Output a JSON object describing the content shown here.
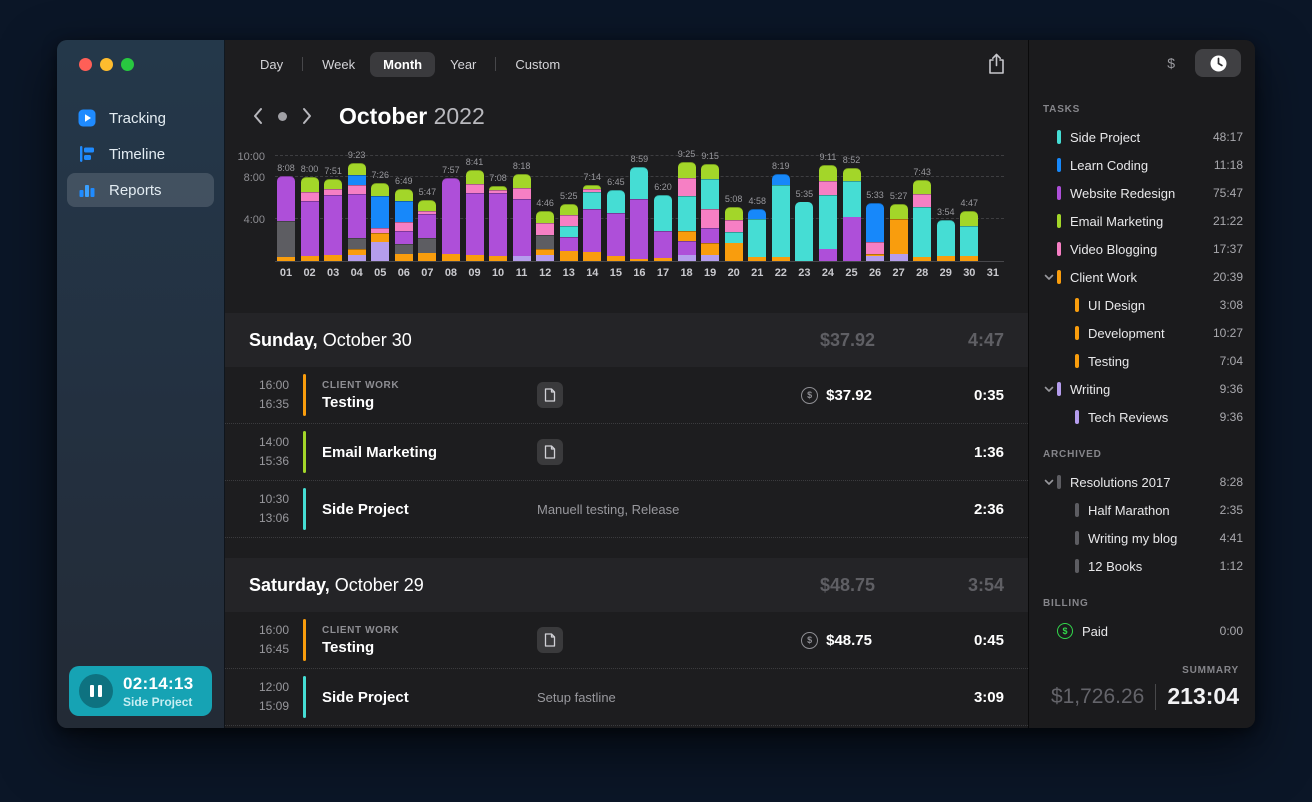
{
  "colors": {
    "accent_blue": "#1f8bff",
    "timer_bg": "#16a3b4",
    "palette": {
      "orange": "#f99d0d",
      "purple": "#ae4fd9",
      "gray": "#5d5d62",
      "pink": "#f67fc4",
      "green": "#a3d629",
      "blue": "#1788fa",
      "cyan": "#45ddd4",
      "lavender": "#b59ded",
      "billing_green": "#32d74b"
    }
  },
  "sidebar": {
    "items": [
      {
        "label": "Tracking",
        "icon": "tracking-icon",
        "active": false
      },
      {
        "label": "Timeline",
        "icon": "timeline-icon",
        "active": false
      },
      {
        "label": "Reports",
        "icon": "reports-icon",
        "active": true
      }
    ],
    "timer": {
      "time": "02:14:13",
      "task": "Side Project"
    }
  },
  "main": {
    "tabs": [
      {
        "label": "Day",
        "active": false
      },
      {
        "label": "Week",
        "active": false
      },
      {
        "label": "Month",
        "active": true
      },
      {
        "label": "Year",
        "active": false
      },
      {
        "label": "Custom",
        "active": false
      }
    ],
    "period": {
      "month": "October",
      "year": "2022"
    },
    "days": [
      {
        "title_bold": "Sunday,",
        "title_rest": " October 30",
        "amount": "$37.92",
        "duration": "4:47",
        "entries": [
          {
            "start": "16:00",
            "end": "16:35",
            "color": "orange",
            "category": "CLIENT WORK",
            "title": "Testing",
            "note": "",
            "has_doc": true,
            "amount": "$37.92",
            "duration": "0:35"
          },
          {
            "start": "14:00",
            "end": "15:36",
            "color": "green",
            "category": "",
            "title": "Email Marketing",
            "note": "",
            "has_doc": true,
            "amount": "",
            "duration": "1:36"
          },
          {
            "start": "10:30",
            "end": "13:06",
            "color": "cyan",
            "category": "",
            "title": "Side Project",
            "note": "Manuell testing, Release",
            "has_doc": false,
            "amount": "",
            "duration": "2:36"
          }
        ]
      },
      {
        "title_bold": "Saturday,",
        "title_rest": " October 29",
        "amount": "$48.75",
        "duration": "3:54",
        "entries": [
          {
            "start": "16:00",
            "end": "16:45",
            "color": "orange",
            "category": "CLIENT WORK",
            "title": "Testing",
            "note": "",
            "has_doc": true,
            "amount": "$48.75",
            "duration": "0:45"
          },
          {
            "start": "12:00",
            "end": "15:09",
            "color": "cyan",
            "category": "",
            "title": "Side Project",
            "note": "Setup fastline",
            "has_doc": false,
            "amount": "",
            "duration": "3:09"
          }
        ]
      }
    ]
  },
  "chart_data": {
    "type": "stacked-bar",
    "title": "Daily tracked time — October 2022",
    "unit": "hours",
    "grid": "dashed",
    "ylim_hours": [
      0,
      10.6
    ],
    "y_ticks": [
      {
        "label": "10:00",
        "hours": 10
      },
      {
        "label": "8:00",
        "hours": 8
      },
      {
        "label": "4:00",
        "hours": 4
      }
    ],
    "x_labels": [
      "01",
      "02",
      "03",
      "04",
      "05",
      "06",
      "07",
      "08",
      "09",
      "10",
      "11",
      "12",
      "13",
      "14",
      "15",
      "16",
      "17",
      "18",
      "19",
      "20",
      "21",
      "22",
      "23",
      "24",
      "25",
      "26",
      "27",
      "28",
      "29",
      "30",
      "31"
    ],
    "totals": [
      "8:08",
      "8:00",
      "7:51",
      "9:23",
      "7:26",
      "6:49",
      "5:47",
      "7:57",
      "8:41",
      "7:08",
      "8:18",
      "4:46",
      "5:25",
      "7:14",
      "6:45",
      "8:59",
      "6:20",
      "9:25",
      "9:15",
      "5:08",
      "4:58",
      "8:19",
      "5:35",
      "9:11",
      "8:52",
      "5:33",
      "5:27",
      "7:43",
      "3:54",
      "4:47",
      ""
    ],
    "bars": [
      [
        [
          "orange",
          0.4
        ],
        [
          "gray",
          3.45
        ],
        [
          "purple",
          4.28
        ]
      ],
      [
        [
          "orange",
          0.5
        ],
        [
          "purple",
          5.25
        ],
        [
          "pink",
          0.85
        ],
        [
          "green",
          1.4
        ]
      ],
      [
        [
          "orange",
          0.6
        ],
        [
          "purple",
          5.65
        ],
        [
          "pink",
          0.6
        ],
        [
          "green",
          1.0
        ]
      ],
      [
        [
          "lavender",
          0.55
        ],
        [
          "orange",
          0.6
        ],
        [
          "gray",
          1.05
        ],
        [
          "purple",
          4.2
        ],
        [
          "pink",
          0.8
        ],
        [
          "blue",
          1.0
        ],
        [
          "green",
          1.18
        ]
      ],
      [
        [
          "lavender",
          1.85
        ],
        [
          "orange",
          0.8
        ],
        [
          "pink",
          0.45
        ],
        [
          "blue",
          3.1
        ],
        [
          "green",
          1.23
        ]
      ],
      [
        [
          "orange",
          0.7
        ],
        [
          "gray",
          0.9
        ],
        [
          "purple",
          1.25
        ],
        [
          "pink",
          0.85
        ],
        [
          "blue",
          2.0
        ],
        [
          "green",
          1.12
        ]
      ],
      [
        [
          "orange",
          0.8
        ],
        [
          "gray",
          1.35
        ],
        [
          "purple",
          2.35
        ],
        [
          "pink",
          0.28
        ],
        [
          "green",
          1.0
        ]
      ],
      [
        [
          "orange",
          0.7
        ],
        [
          "purple",
          7.25
        ]
      ],
      [
        [
          "orange",
          0.55
        ],
        [
          "purple",
          5.9
        ],
        [
          "pink",
          0.9
        ],
        [
          "green",
          1.33
        ]
      ],
      [
        [
          "orange",
          0.45
        ],
        [
          "purple",
          6.05
        ],
        [
          "pink",
          0.25
        ],
        [
          "green",
          0.38
        ]
      ],
      [
        [
          "lavender",
          0.5
        ],
        [
          "purple",
          5.45
        ],
        [
          "pink",
          1.05
        ],
        [
          "green",
          1.3
        ]
      ],
      [
        [
          "lavender",
          0.55
        ],
        [
          "orange",
          0.6
        ],
        [
          "gray",
          1.3
        ],
        [
          "pink",
          1.2
        ],
        [
          "green",
          1.12
        ]
      ],
      [
        [
          "orange",
          1.0
        ],
        [
          "purple",
          1.3
        ],
        [
          "cyan",
          1.0
        ],
        [
          "pink",
          1.1
        ],
        [
          "green",
          1.02
        ]
      ],
      [
        [
          "orange",
          0.9
        ],
        [
          "purple",
          4.05
        ],
        [
          "cyan",
          1.65
        ],
        [
          "pink",
          0.3
        ],
        [
          "green",
          0.33
        ]
      ],
      [
        [
          "orange",
          0.5
        ],
        [
          "purple",
          4.1
        ],
        [
          "cyan",
          2.15
        ]
      ],
      [
        [
          "orange",
          0.2
        ],
        [
          "purple",
          5.7
        ],
        [
          "cyan",
          3.08
        ]
      ],
      [
        [
          "orange",
          0.25
        ],
        [
          "purple",
          2.6
        ],
        [
          "cyan",
          3.48
        ]
      ],
      [
        [
          "lavender",
          0.6
        ],
        [
          "purple",
          1.3
        ],
        [
          "orange",
          1.0
        ],
        [
          "cyan",
          3.3
        ],
        [
          "pink",
          1.7
        ],
        [
          "green",
          1.52
        ]
      ],
      [
        [
          "lavender",
          0.6
        ],
        [
          "orange",
          1.1
        ],
        [
          "purple",
          1.4
        ],
        [
          "pink",
          1.9
        ],
        [
          "cyan",
          2.8
        ],
        [
          "green",
          1.45
        ]
      ],
      [
        [
          "orange",
          1.7
        ],
        [
          "cyan",
          1.1
        ],
        [
          "pink",
          1.1
        ],
        [
          "green",
          1.23
        ]
      ],
      [
        [
          "orange",
          0.4
        ],
        [
          "cyan",
          3.6
        ],
        [
          "blue",
          0.97
        ]
      ],
      [
        [
          "orange",
          0.35
        ],
        [
          "cyan",
          6.9
        ],
        [
          "blue",
          1.07
        ]
      ],
      [
        [
          "cyan",
          5.58
        ]
      ],
      [
        [
          "purple",
          1.1
        ],
        [
          "cyan",
          5.2
        ],
        [
          "pink",
          1.3
        ],
        [
          "green",
          1.58
        ]
      ],
      [
        [
          "purple",
          4.2
        ],
        [
          "cyan",
          3.4
        ],
        [
          "green",
          1.27
        ]
      ],
      [
        [
          "lavender",
          0.45
        ],
        [
          "orange",
          0.25
        ],
        [
          "pink",
          1.1
        ],
        [
          "blue",
          3.75
        ]
      ],
      [
        [
          "lavender",
          0.7
        ],
        [
          "orange",
          3.3
        ],
        [
          "green",
          1.45
        ]
      ],
      [
        [
          "orange",
          0.4
        ],
        [
          "cyan",
          4.7
        ],
        [
          "pink",
          1.3
        ],
        [
          "green",
          1.32
        ]
      ],
      [
        [
          "orange",
          0.5
        ],
        [
          "cyan",
          3.4
        ]
      ],
      [
        [
          "orange",
          0.5
        ],
        [
          "cyan",
          2.85
        ],
        [
          "green",
          1.43
        ]
      ],
      []
    ]
  },
  "tasks_panel": {
    "dollar_symbol": "$",
    "tasks_label": "TASKS",
    "archived_label": "ARCHIVED",
    "billing_label": "BILLING",
    "tasks": [
      {
        "label": "Side Project",
        "time": "48:17",
        "color": "cyan",
        "indent": 0,
        "chevron": false
      },
      {
        "label": "Learn Coding",
        "time": "11:18",
        "color": "blue",
        "indent": 0,
        "chevron": false
      },
      {
        "label": "Website Redesign",
        "time": "75:47",
        "color": "purple",
        "indent": 0,
        "chevron": false
      },
      {
        "label": "Email Marketing",
        "time": "21:22",
        "color": "green",
        "indent": 0,
        "chevron": false
      },
      {
        "label": "Video Blogging",
        "time": "17:37",
        "color": "pink",
        "indent": 0,
        "chevron": false
      },
      {
        "label": "Client Work",
        "time": "20:39",
        "color": "orange",
        "indent": 0,
        "chevron": true
      },
      {
        "label": "UI Design",
        "time": "3:08",
        "color": "orange",
        "indent": 1,
        "chevron": false
      },
      {
        "label": "Development",
        "time": "10:27",
        "color": "orange",
        "indent": 1,
        "chevron": false
      },
      {
        "label": "Testing",
        "time": "7:04",
        "color": "orange",
        "indent": 1,
        "chevron": false
      },
      {
        "label": "Writing",
        "time": "9:36",
        "color": "lavender",
        "indent": 0,
        "chevron": true
      },
      {
        "label": "Tech Reviews",
        "time": "9:36",
        "color": "lavender",
        "indent": 1,
        "chevron": false
      }
    ],
    "archived": [
      {
        "label": "Resolutions 2017",
        "time": "8:28",
        "color": "gray",
        "indent": 0,
        "chevron": true
      },
      {
        "label": "Half Marathon",
        "time": "2:35",
        "color": "gray",
        "indent": 1,
        "chevron": false
      },
      {
        "label": "Writing my blog",
        "time": "4:41",
        "color": "gray",
        "indent": 1,
        "chevron": false
      },
      {
        "label": "12 Books",
        "time": "1:12",
        "color": "gray",
        "indent": 1,
        "chevron": false
      }
    ],
    "billing": [
      {
        "label": "Paid",
        "time": "0:00",
        "icon": "dollar-circle-icon"
      }
    ],
    "summary": {
      "label": "SUMMARY",
      "amount": "$1,726.26",
      "duration": "213:04"
    }
  }
}
